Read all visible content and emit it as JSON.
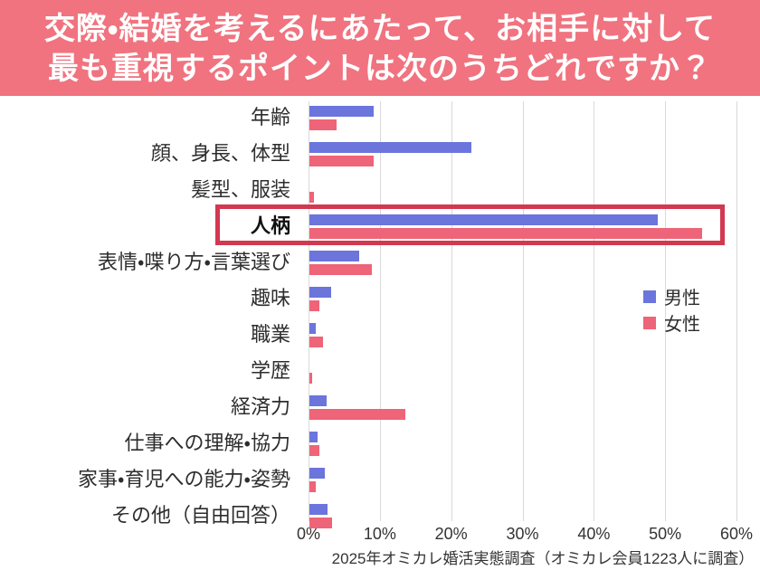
{
  "title": {
    "line1": "交際・結婚を考えるにあたって、お相手に対して",
    "line2": "最も重視するポイントは次のうちどれですか？"
  },
  "chart_data": {
    "type": "bar",
    "orientation": "horizontal",
    "title": "交際・結婚を考えるにあたって、お相手に対して最も重視するポイントは次のうちどれですか？",
    "categories": [
      "年齢",
      "顔、身長、体型",
      "髪型、服装",
      "人柄",
      "表情・喋り方・言葉選び",
      "趣味",
      "職業",
      "学歴",
      "経済力",
      "仕事への理解・協力",
      "家事・育児への能力・姿勢",
      "その他（自由回答）"
    ],
    "series": [
      {
        "name": "男性",
        "color": "#6b75dc",
        "values": [
          9.0,
          22.7,
          0,
          48.9,
          7.0,
          3.0,
          0.9,
          0,
          2.4,
          1.1,
          2.2,
          2.6
        ]
      },
      {
        "name": "女性",
        "color": "#ee6478",
        "values": [
          3.8,
          9.0,
          0.6,
          55.0,
          8.8,
          1.4,
          1.9,
          0.4,
          13.4,
          1.4,
          0.9,
          3.2
        ]
      }
    ],
    "xticks": [
      "0%",
      "10%",
      "20%",
      "30%",
      "40%",
      "50%",
      "60%"
    ],
    "xlim": [
      0,
      60
    ],
    "grid": true,
    "legend_position": "middle-right",
    "highlight": {
      "category": "人柄",
      "category_index": 3
    }
  },
  "footer": {
    "source": "2025年オミカレ婚活実態調査（オミカレ会員1223人に調査）"
  },
  "colors": {
    "banner_bg": "#f0737f",
    "banner_text": "#ffffff",
    "male_bar": "#6b75dc",
    "female_bar": "#ee6478",
    "highlight_box": "#d23850",
    "gridline": "#d9d9d9",
    "text": "#2d2d2d"
  }
}
